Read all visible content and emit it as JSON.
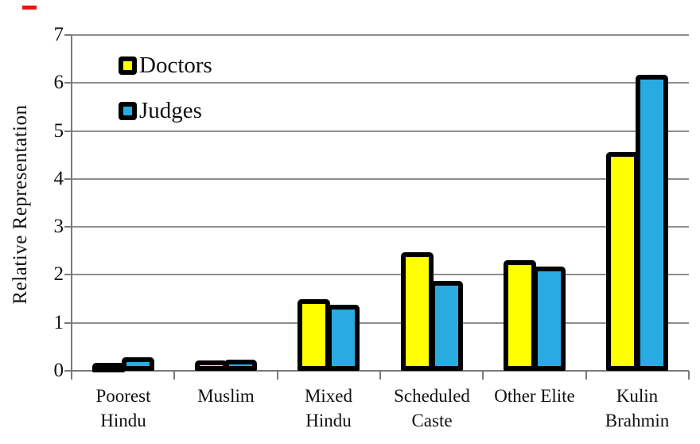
{
  "page": {
    "background": "#ffffff",
    "red_corner_mark_color": "#ee1111"
  },
  "chart_data": {
    "type": "bar",
    "title": "",
    "xlabel": "",
    "ylabel": "Relative Representation",
    "ylim": [
      0,
      7
    ],
    "yticks": [
      "0",
      "1",
      "2",
      "3",
      "4",
      "5",
      "6",
      "7"
    ],
    "grid": true,
    "legend_position": "top-left-inside",
    "categories": [
      "Poorest Hindu",
      "Muslim",
      "Mixed Hindu",
      "Scheduled Caste",
      "Other Elite",
      "Kulin Brahmin"
    ],
    "category_label_lines": [
      [
        "Poorest",
        "Hindu"
      ],
      [
        "Muslim"
      ],
      [
        "Mixed",
        "Hindu"
      ],
      [
        "Scheduled",
        "Caste"
      ],
      [
        "Other Elite"
      ],
      [
        "Kulin",
        "Brahmin"
      ]
    ],
    "series": [
      {
        "name": "Doctors",
        "color": "#FFFF00",
        "values": [
          0.07,
          0.11,
          1.4,
          2.37,
          2.21,
          4.47
        ]
      },
      {
        "name": "Judges",
        "color": "#29ABE2",
        "values": [
          0.18,
          0.13,
          1.28,
          1.77,
          2.08,
          6.07
        ]
      }
    ],
    "bar_outline_color": "#000000",
    "gridline_color": "#8e8e8e",
    "axis_color": "#7a7a7a",
    "text_color": "#111111"
  }
}
